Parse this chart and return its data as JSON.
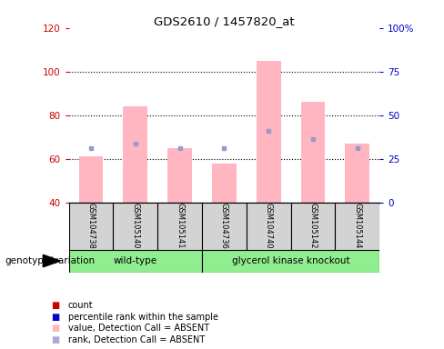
{
  "title": "GDS2610 / 1457820_at",
  "samples": [
    "GSM104738",
    "GSM105140",
    "GSM105141",
    "GSM104736",
    "GSM104740",
    "GSM105142",
    "GSM105144"
  ],
  "wild_type_count": 3,
  "pink_values": [
    61,
    84,
    65,
    58,
    105,
    86,
    67
  ],
  "blue_squares": [
    65,
    67,
    65,
    65,
    73,
    69,
    65
  ],
  "ylim_left": [
    40,
    120
  ],
  "yticks_left": [
    40,
    60,
    80,
    100,
    120
  ],
  "yticks_right": [
    0,
    25,
    50,
    75,
    100
  ],
  "yticklabels_right": [
    "0",
    "25",
    "50",
    "75",
    "100%"
  ],
  "left_tick_color": "#cc0000",
  "right_tick_color": "#0000cc",
  "bar_color_pink": "#FFB6C1",
  "square_color_blue": "#9999CC",
  "legend_colors": [
    "#cc0000",
    "#0000cc",
    "#FFB6C1",
    "#AAAADD"
  ],
  "legend_labels": [
    "count",
    "percentile rank within the sample",
    "value, Detection Call = ABSENT",
    "rank, Detection Call = ABSENT"
  ],
  "base_value": 40,
  "grid_dotted_at": [
    60,
    80,
    100
  ],
  "gray_box_color": "#d3d3d3",
  "green_box_color": "#90EE90"
}
